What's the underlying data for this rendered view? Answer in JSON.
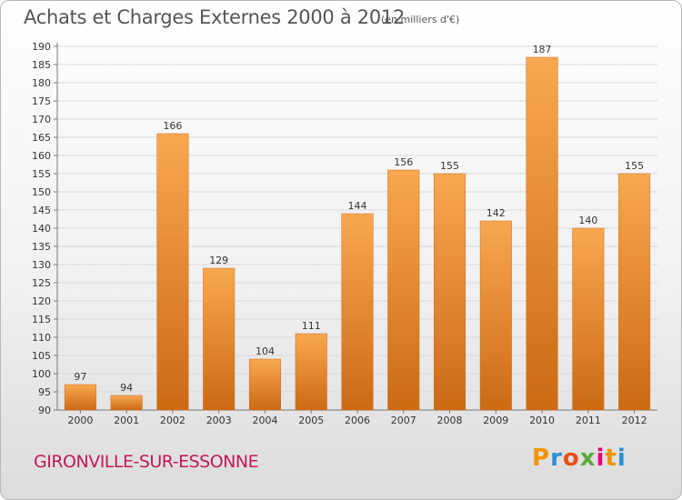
{
  "header": {
    "title": "Achats et Charges Externes 2000 à 2012",
    "subtitle": "(en milliers d'€)"
  },
  "footer": {
    "commune": "GIRONVILLE-SUR-ESSONNE",
    "logo_text": "Proxiti"
  },
  "colors": {
    "bar_light": "#f8a850",
    "bar_dark": "#cc6a14",
    "commune_text": "#c2185b",
    "logo_letters": [
      "#f39200",
      "#2f8fce",
      "#e94e1b",
      "#5aab3c",
      "#e5007d",
      "#f39200",
      "#2f8fce"
    ]
  },
  "chart_data": {
    "type": "bar",
    "categories": [
      "2000",
      "2001",
      "2002",
      "2003",
      "2004",
      "2005",
      "2006",
      "2007",
      "2008",
      "2009",
      "2010",
      "2011",
      "2012"
    ],
    "values": [
      97,
      94,
      166,
      129,
      104,
      111,
      144,
      156,
      155,
      142,
      187,
      140,
      155
    ],
    "ylim": [
      90,
      190
    ],
    "ytick_step": 5,
    "grid": true,
    "legend": "none"
  }
}
